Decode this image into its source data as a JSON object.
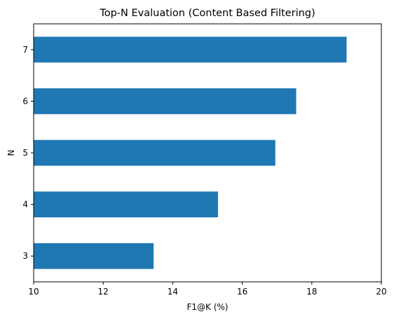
{
  "chart_data": {
    "type": "bar",
    "orientation": "horizontal",
    "title": "Top-N Evaluation (Content Based Filtering)",
    "xlabel": "F1@K (%)",
    "ylabel": "N",
    "categories": [
      "3",
      "4",
      "5",
      "6",
      "7"
    ],
    "values": [
      13.45,
      15.3,
      16.95,
      17.55,
      19.0
    ],
    "xlim": [
      10,
      20
    ],
    "xticks": [
      "10",
      "12",
      "14",
      "16",
      "18",
      "20"
    ],
    "grid": false,
    "legend": "none",
    "bar_color": "#1f77b4"
  }
}
